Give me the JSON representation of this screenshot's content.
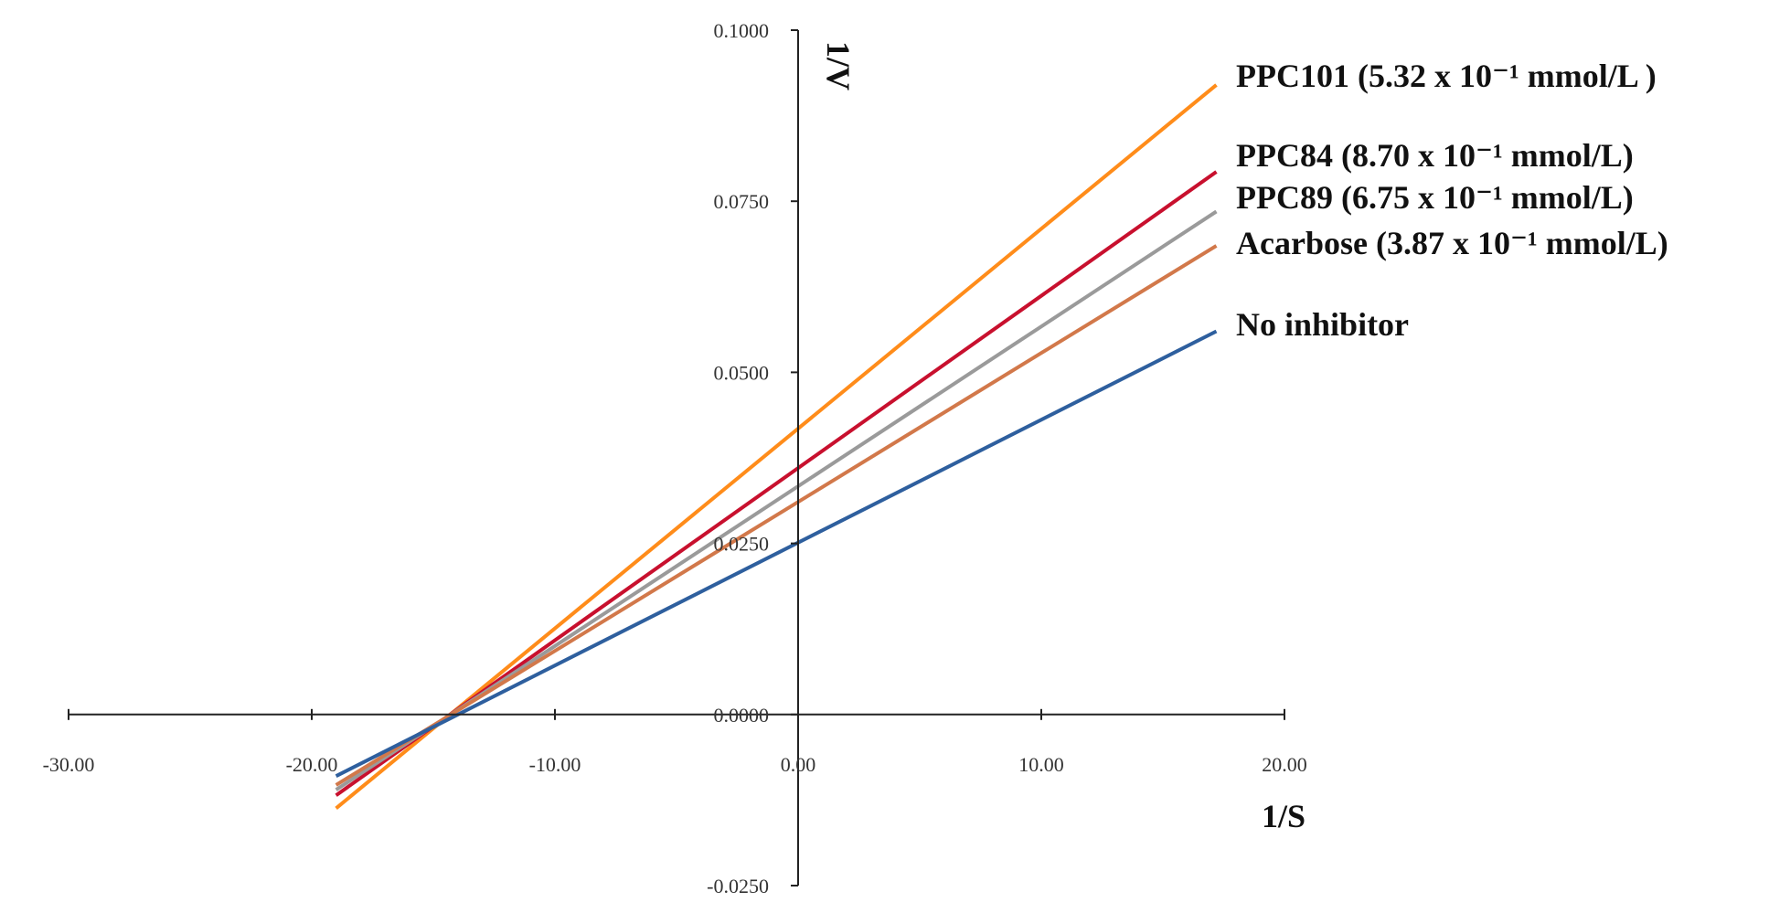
{
  "chart_data": {
    "type": "line",
    "xlabel": "1/S",
    "ylabel": "1/V",
    "xlim": [
      -30,
      20
    ],
    "ylim": [
      -0.025,
      0.1
    ],
    "x_ticks": [
      -30,
      -20,
      -10,
      0,
      10,
      20
    ],
    "x_tick_labels": [
      "-30.00",
      "-20.00",
      "-10.00",
      "0.00",
      "10.00",
      "20.00"
    ],
    "y_ticks": [
      -0.025,
      0,
      0.025,
      0.05,
      0.075,
      0.1
    ],
    "y_tick_labels": [
      "-0.0250",
      "0.0000",
      "0.0250",
      "0.0500",
      "0.0750",
      "0.1000"
    ],
    "grid": false,
    "legend_placement": "right",
    "series": [
      {
        "name": "PPC101 (5.32 x 10⁻¹ mmol/L )",
        "color": "#ff8c1a",
        "x": [
          -19,
          17.2
        ],
        "y": [
          -0.0137,
          0.092
        ]
      },
      {
        "name": "PPC84 (8.70 x 10⁻¹ mmol/L)",
        "color": "#c8102e",
        "x": [
          -19,
          17.2
        ],
        "y": [
          -0.0118,
          0.0793
        ]
      },
      {
        "name": "PPC89 (6.75 x 10⁻¹ mmol/L)",
        "color": "#9a9a9a",
        "x": [
          -19,
          17.2
        ],
        "y": [
          -0.011,
          0.0735
        ]
      },
      {
        "name": "Acarbose (3.87 x 10⁻¹ mmol/L)",
        "color": "#d2784a",
        "x": [
          -19,
          17.2
        ],
        "y": [
          -0.0103,
          0.0685
        ]
      },
      {
        "name": "No inhibitor",
        "color": "#2e5f9e",
        "x": [
          -19,
          17.2
        ],
        "y": [
          -0.009,
          0.056
        ]
      }
    ]
  }
}
